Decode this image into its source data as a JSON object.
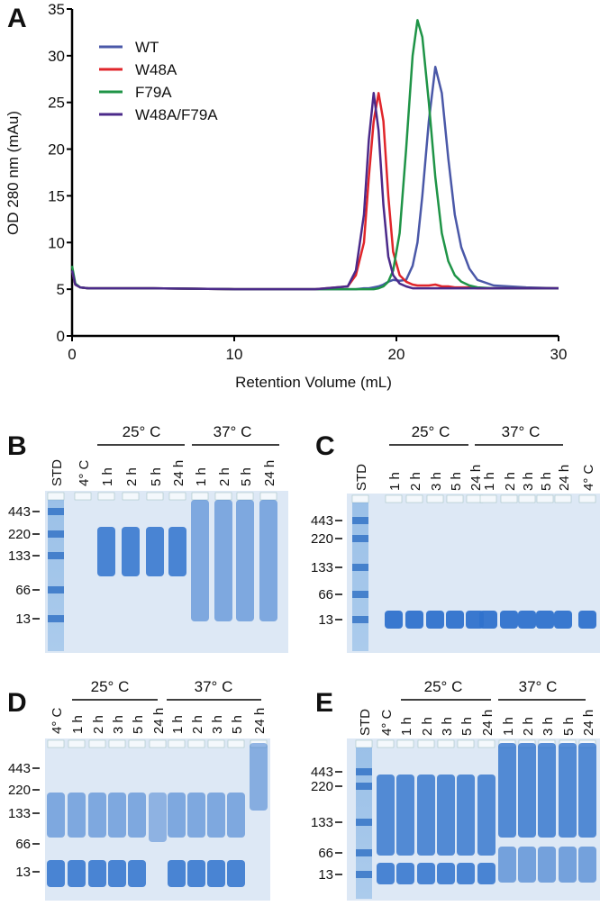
{
  "chart_data": {
    "type": "line",
    "label": "A",
    "xlabel": "Retention Volume (mL)",
    "ylabel": "OD 280 nm (mAu)",
    "xlim": [
      0,
      30
    ],
    "ylim": [
      0,
      35
    ],
    "xticks": [
      0,
      10,
      20,
      30
    ],
    "yticks": [
      0,
      5,
      10,
      15,
      20,
      25,
      30,
      35
    ],
    "x": [
      0,
      0.2,
      0.5,
      1,
      5,
      10,
      15,
      17,
      17.5,
      18,
      18.3,
      18.6,
      18.9,
      19.2,
      19.5,
      19.8,
      20.2,
      20.6,
      21,
      21.3,
      21.6,
      22,
      22.4,
      22.8,
      23.2,
      23.6,
      24,
      24.5,
      25,
      26,
      28,
      30
    ],
    "series": [
      {
        "name": "WT",
        "color": "#4a58a8",
        "values": [
          7,
          5.5,
          5.2,
          5.1,
          5.1,
          5,
          5,
          5,
          5,
          5.1,
          5.1,
          5.2,
          5.3,
          5.5,
          5.8,
          6,
          5.9,
          6,
          7.5,
          10,
          15,
          23,
          28.8,
          26,
          19,
          13,
          9.5,
          7.2,
          6,
          5.4,
          5.2,
          5.1
        ]
      },
      {
        "name": "W48A",
        "color": "#e0262b",
        "values": [
          7,
          5.5,
          5.2,
          5.1,
          5.1,
          5,
          5,
          5.3,
          6.5,
          10,
          17,
          23,
          26,
          23,
          15,
          9,
          6.5,
          5.8,
          5.5,
          5.4,
          5.4,
          5.4,
          5.5,
          5.3,
          5.3,
          5.2,
          5.2,
          5.2,
          5.1,
          5.1,
          5.1,
          5.1
        ]
      },
      {
        "name": "F79A",
        "color": "#1f9447",
        "values": [
          7.5,
          5.6,
          5.2,
          5.1,
          5.1,
          5,
          5,
          5,
          5,
          5,
          5,
          5,
          5.1,
          5.3,
          5.8,
          7,
          11,
          20,
          30,
          33.8,
          32,
          25,
          17,
          11,
          8,
          6.5,
          5.8,
          5.4,
          5.2,
          5.1,
          5.1,
          5.1
        ]
      },
      {
        "name": "W48A/F79A",
        "color": "#4b2a8a",
        "values": [
          7,
          5.5,
          5.2,
          5.1,
          5.1,
          5,
          5,
          5.3,
          7,
          13,
          21,
          26,
          22,
          14,
          8.5,
          6.5,
          5.6,
          5.3,
          5.1,
          5.1,
          5.1,
          5.1,
          5.1,
          5.1,
          5.1,
          5.1,
          5.1,
          5.1,
          5.1,
          5.1,
          5.1,
          5.1
        ]
      }
    ]
  },
  "gels": [
    {
      "label": "B",
      "headers": [
        "25° C",
        "37° C"
      ],
      "lanes": [
        "STD",
        "4° C",
        "1 h",
        "2 h",
        "5 h",
        "24 h",
        "1 h",
        "2 h",
        "5 h",
        "24 h"
      ],
      "markers": [
        443,
        220,
        133,
        66,
        13
      ]
    },
    {
      "label": "C",
      "headers": [
        "25° C",
        "37° C"
      ],
      "lanes": [
        "STD",
        "1 h",
        "2 h",
        "3 h",
        "5 h",
        "24 h",
        "1 h",
        "2 h",
        "3 h",
        "5 h",
        "24 h",
        "4° C"
      ],
      "markers": [
        443,
        220,
        133,
        66,
        13
      ]
    },
    {
      "label": "D",
      "headers": [
        "25° C",
        "37° C"
      ],
      "lanes": [
        "4° C",
        "1 h",
        "2 h",
        "3 h",
        "5 h",
        "24 h",
        "1 h",
        "2 h",
        "3 h",
        "5 h",
        "24 h"
      ],
      "markers": [
        443,
        220,
        133,
        66,
        13
      ]
    },
    {
      "label": "E",
      "headers": [
        "25° C",
        "37° C"
      ],
      "lanes": [
        "STD",
        "4° C",
        "1 h",
        "2 h",
        "3 h",
        "5 h",
        "24 h",
        "1 h",
        "2 h",
        "3 h",
        "5 h",
        "24 h"
      ],
      "markers": [
        443,
        220,
        133,
        66,
        13
      ]
    }
  ]
}
